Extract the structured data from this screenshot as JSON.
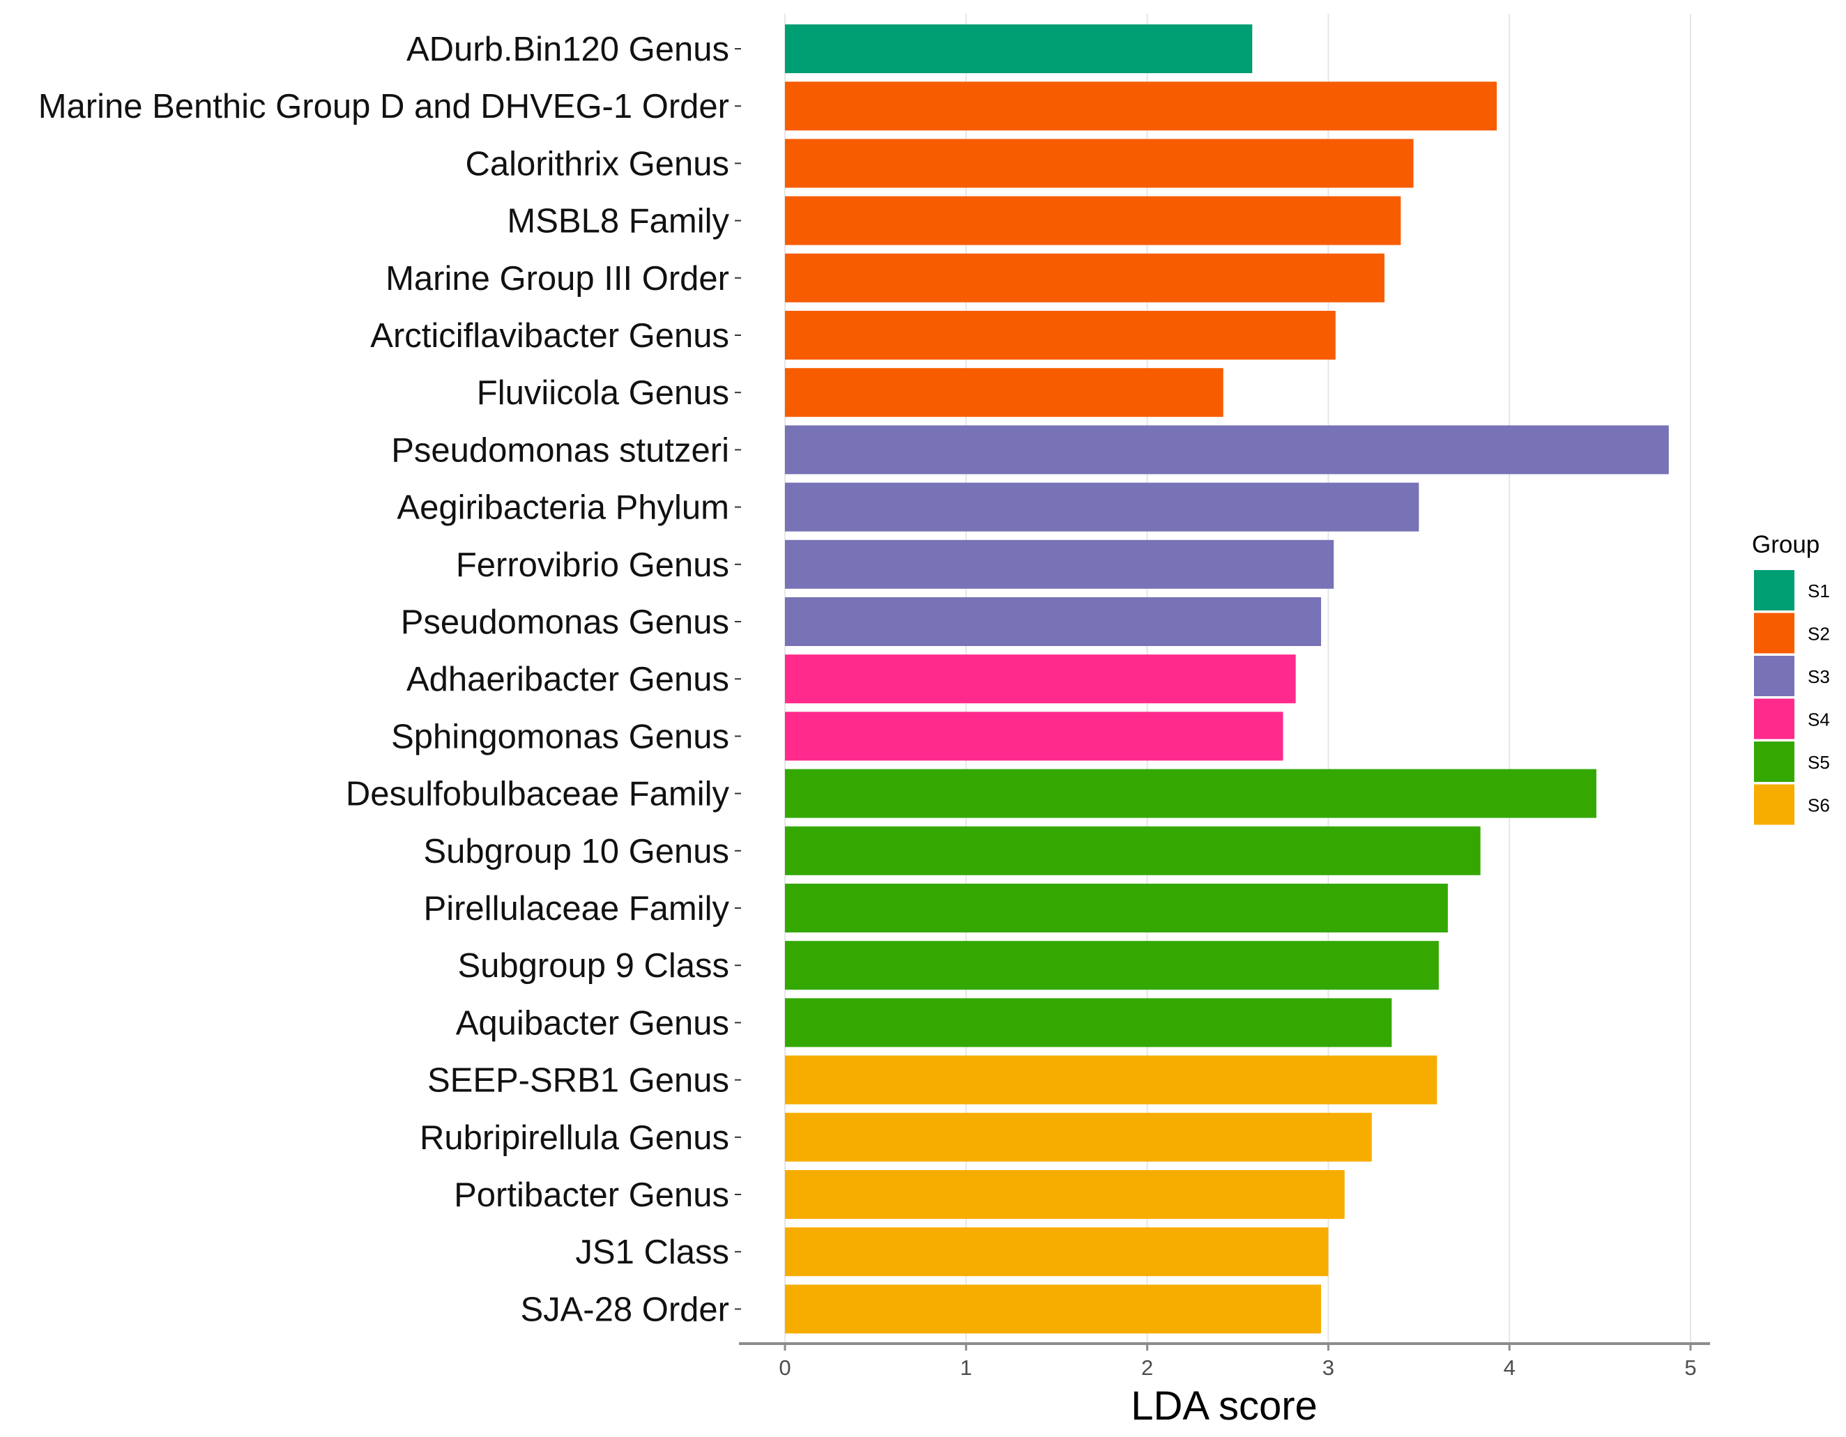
{
  "chart_data": {
    "type": "bar",
    "orientation": "horizontal",
    "xlabel": "LDA score",
    "ylabel": "",
    "xlim": [
      0,
      5
    ],
    "xticks": [
      "0",
      "1",
      "2",
      "3",
      "4",
      "5"
    ],
    "grid": true,
    "legend": {
      "title": "Group",
      "position": "right",
      "entries": [
        {
          "name": "S1",
          "color": "#009E73"
        },
        {
          "name": "S2",
          "color": "#F85C00"
        },
        {
          "name": "S3",
          "color": "#7872B6"
        },
        {
          "name": "S4",
          "color": "#FF2A8C"
        },
        {
          "name": "S5",
          "color": "#34A800"
        },
        {
          "name": "S6",
          "color": "#F7AD00"
        }
      ]
    },
    "bars": [
      {
        "label": "ADurb.Bin120 Genus",
        "value": 2.58,
        "group": "S1"
      },
      {
        "label": "Marine Benthic Group D and DHVEG-1 Order",
        "value": 3.93,
        "group": "S2"
      },
      {
        "label": "Calorithrix Genus",
        "value": 3.47,
        "group": "S2"
      },
      {
        "label": "MSBL8 Family",
        "value": 3.4,
        "group": "S2"
      },
      {
        "label": "Marine Group III Order",
        "value": 3.31,
        "group": "S2"
      },
      {
        "label": "Arcticiflavibacter Genus",
        "value": 3.04,
        "group": "S2"
      },
      {
        "label": "Fluviicola Genus",
        "value": 2.42,
        "group": "S2"
      },
      {
        "label": "Pseudomonas stutzeri",
        "value": 4.88,
        "group": "S3"
      },
      {
        "label": "Aegiribacteria Phylum",
        "value": 3.5,
        "group": "S3"
      },
      {
        "label": "Ferrovibrio Genus",
        "value": 3.03,
        "group": "S3"
      },
      {
        "label": "Pseudomonas Genus",
        "value": 2.96,
        "group": "S3"
      },
      {
        "label": "Adhaeribacter Genus",
        "value": 2.82,
        "group": "S4"
      },
      {
        "label": "Sphingomonas Genus",
        "value": 2.75,
        "group": "S4"
      },
      {
        "label": "Desulfobulbaceae Family",
        "value": 4.48,
        "group": "S5"
      },
      {
        "label": "Subgroup 10 Genus",
        "value": 3.84,
        "group": "S5"
      },
      {
        "label": "Pirellulaceae Family",
        "value": 3.66,
        "group": "S5"
      },
      {
        "label": "Subgroup 9 Class",
        "value": 3.61,
        "group": "S5"
      },
      {
        "label": "Aquibacter Genus",
        "value": 3.35,
        "group": "S5"
      },
      {
        "label": "SEEP-SRB1 Genus",
        "value": 3.6,
        "group": "S6"
      },
      {
        "label": "Rubripirellula Genus",
        "value": 3.24,
        "group": "S6"
      },
      {
        "label": "Portibacter Genus",
        "value": 3.09,
        "group": "S6"
      },
      {
        "label": "JS1 Class",
        "value": 3.0,
        "group": "S6"
      },
      {
        "label": "SJA-28 Order",
        "value": 2.96,
        "group": "S6"
      }
    ]
  }
}
